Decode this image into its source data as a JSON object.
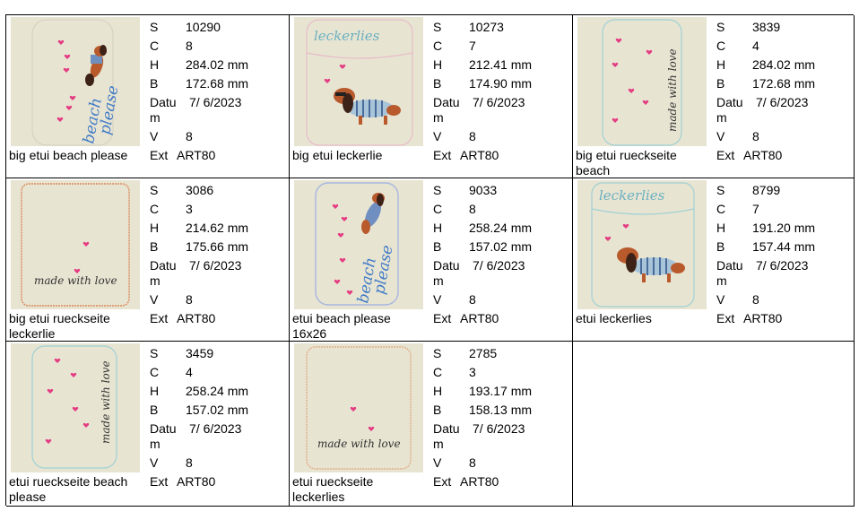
{
  "labels": {
    "s": "S",
    "c": "C",
    "h": "H",
    "b": "B",
    "datum": "Datu m",
    "v": "V",
    "ext": "Ext"
  },
  "designs": [
    {
      "name": "big etui beach please",
      "s": "10290",
      "c": "8",
      "h": "284.02 mm",
      "b": "172.68 mm",
      "date": "7/ 6/2023",
      "v": "8",
      "ext": "ART80",
      "image_text": "beach please"
    },
    {
      "name": "big etui leckerlie",
      "s": "10273",
      "c": "7",
      "h": "212.41 mm",
      "b": "174.90 mm",
      "date": "7/ 6/2023",
      "v": "8",
      "ext": "ART80",
      "image_text": "leckerlies"
    },
    {
      "name": "big etui rueckseite beach",
      "s": "3839",
      "c": "4",
      "h": "284.02 mm",
      "b": "172.68 mm",
      "date": "7/ 6/2023",
      "v": "8",
      "ext": "ART80",
      "image_text": "made with love"
    },
    {
      "name": "big etui rueckseite leckerlie",
      "s": "3086",
      "c": "3",
      "h": "214.62 mm",
      "b": "175.66 mm",
      "date": "7/ 6/2023",
      "v": "8",
      "ext": "ART80",
      "image_text": "made with love"
    },
    {
      "name": "etui beach please 16x26",
      "s": "9033",
      "c": "8",
      "h": "258.24 mm",
      "b": "157.02 mm",
      "date": "7/ 6/2023",
      "v": "8",
      "ext": "ART80",
      "image_text": "beach please"
    },
    {
      "name": "etui leckerlies",
      "s": "8799",
      "c": "7",
      "h": "191.20 mm",
      "b": "157.44 mm",
      "date": "7/ 6/2023",
      "v": "8",
      "ext": "ART80",
      "image_text": "leckerlies"
    },
    {
      "name": "etui rueckseite beach please",
      "s": "3459",
      "c": "4",
      "h": "258.24 mm",
      "b": "157.02 mm",
      "date": "7/ 6/2023",
      "v": "8",
      "ext": "ART80",
      "image_text": "made with love"
    },
    {
      "name": "etui rueckseite leckerlies",
      "s": "2785",
      "c": "3",
      "h": "193.17 mm",
      "b": "158.13 mm",
      "date": "7/ 6/2023",
      "v": "8",
      "ext": "ART80",
      "image_text": "made with love"
    }
  ]
}
